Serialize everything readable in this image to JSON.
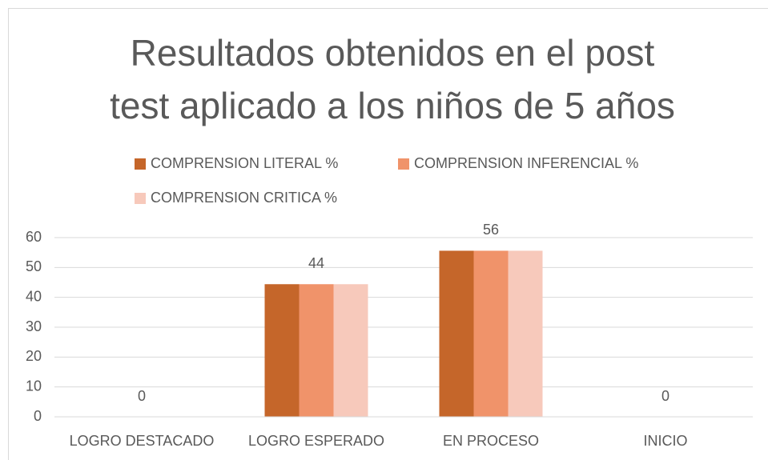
{
  "chart_data": {
    "type": "bar",
    "title": [
      "Resultados obtenidos en el post",
      "test aplicado a los niños de 5 años"
    ],
    "categories": [
      "LOGRO DESTACADO",
      "LOGRO ESPERADO",
      "EN PROCESO",
      "INICIO"
    ],
    "series": [
      {
        "name": "COMPRENSION LITERAL %",
        "color": "#c5662a",
        "values": [
          0,
          44.4,
          55.6,
          0
        ]
      },
      {
        "name": "COMPRENSION INFERENCIAL %",
        "color": "#f0936a",
        "values": [
          0,
          44.4,
          55.6,
          0
        ],
        "value_labels": [
          "0",
          "44",
          "56",
          "0"
        ]
      },
      {
        "name": "COMPRENSION CRITICA %",
        "color": "#f7c9bb",
        "values": [
          0,
          44.4,
          55.6,
          0
        ]
      }
    ],
    "ylim": [
      0,
      60
    ],
    "yticks": [
      0,
      10,
      20,
      30,
      40,
      50,
      60
    ],
    "grid": true,
    "legend": "top"
  }
}
